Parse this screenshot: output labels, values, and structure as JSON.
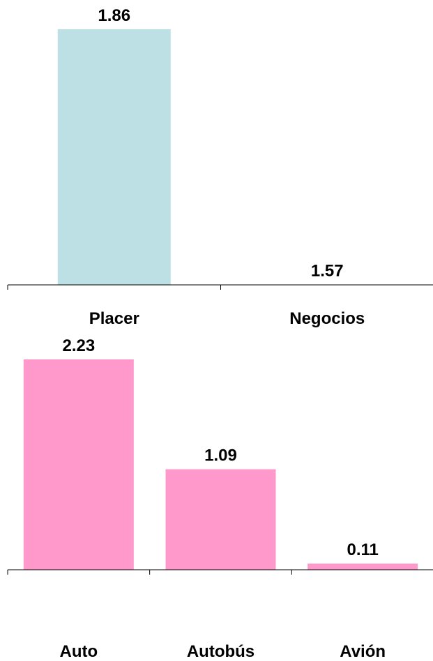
{
  "chart_data": [
    {
      "type": "bar",
      "categories": [
        "Placer",
        "Negocios"
      ],
      "values": [
        1.86,
        1.57
      ],
      "data_labels": [
        "1.86",
        "1.57"
      ],
      "colors": {
        "bar": "#BDE0E4",
        "axis": "#000000",
        "text": "#000000"
      },
      "title": "",
      "xlabel": "",
      "ylabel": "",
      "grid": false
    },
    {
      "type": "bar",
      "categories": [
        "Auto",
        "Autobús",
        "Avión"
      ],
      "values": [
        2.23,
        1.09,
        0.11
      ],
      "data_labels": [
        "2.23",
        "1.09",
        "0.11"
      ],
      "colors": {
        "bar": "#FF99CC",
        "axis": "#000000",
        "text": "#000000"
      },
      "title": "",
      "xlabel": "",
      "ylabel": "",
      "grid": false
    }
  ]
}
